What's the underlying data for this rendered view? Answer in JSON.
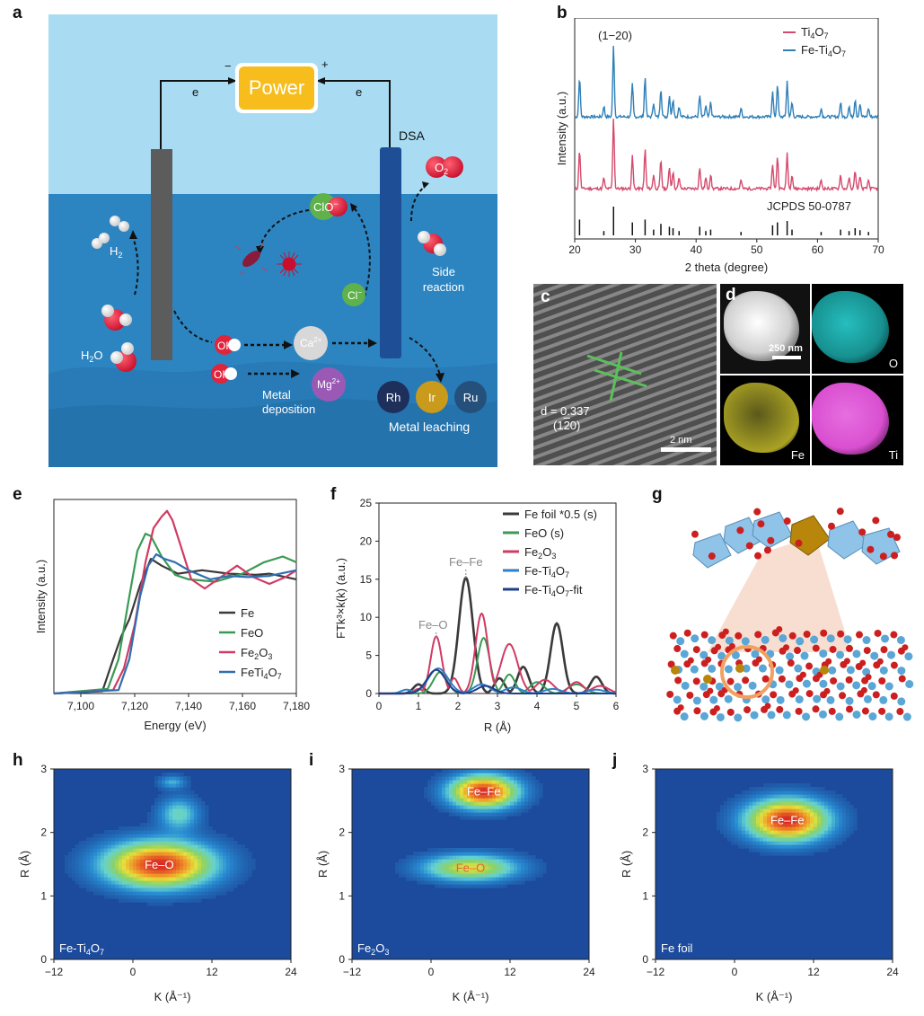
{
  "panel_labels": {
    "a": "a",
    "b": "b",
    "c": "c",
    "d": "d",
    "e": "e",
    "f": "f",
    "g": "g",
    "h": "h",
    "i": "i",
    "j": "j"
  },
  "schematic": {
    "power": "Power",
    "minus": "−",
    "plus": "+",
    "electron_left": "e",
    "electron_right": "e",
    "dsa": "DSA",
    "o2": "O",
    "o2_sub": "2",
    "clo": "ClO",
    "clo_sup": "−",
    "h2": "H",
    "h2_sub": "2",
    "cl": "Cl",
    "cl_sup": "−",
    "side_reaction_1": "Side",
    "side_reaction_2": "reaction",
    "h2o": "H",
    "h2o_sub": "2",
    "h2o_o": "O",
    "oh1": "OH",
    "oh1_sup": "−",
    "oh2": "OH",
    "oh2_sup": "−",
    "ca": "Ca",
    "ca_sup": "2+",
    "mg": "Mg",
    "mg_sup": "2+",
    "metal_deposition_1": "Metal",
    "metal_deposition_2": "deposition",
    "rh": "Rh",
    "ir": "Ir",
    "ru": "Ru",
    "metal_leaching": "Metal leaching",
    "colors": {
      "sky": "#a9dcf2",
      "water": "#2c85c1",
      "power_fill": "#f6bd1c",
      "cathode": "#5c5c5c",
      "anode": "#1e4e96"
    }
  },
  "tem": {
    "d_label": "d = 0.337",
    "d_plane": "(1",
    "d_plane_bar": "2",
    "d_plane_end": "0)",
    "scale": "2 nm"
  },
  "eds": {
    "scale": "250 nm",
    "o": "O",
    "fe": "Fe",
    "ti": "Ti",
    "colors": {
      "o": "#2ad3d3",
      "fe": "#c8bf2a",
      "ti": "#d94fd0"
    }
  },
  "chart_data": [
    {
      "id": "b",
      "type": "line",
      "title": "",
      "annotation": "(1−20)",
      "xlabel": "2 theta (degree)",
      "ylabel": "Intensity (a.u.)",
      "xlim": [
        20,
        70
      ],
      "xticks": [
        "20",
        "30",
        "40",
        "50",
        "60",
        "70"
      ],
      "reference_label": "JCPDS 50-0787",
      "legend_items": [
        {
          "name": "Ti",
          "sub": "4",
          "name2": "O",
          "sub2": "7",
          "color": "#d44a6d"
        },
        {
          "name": "Fe-Ti",
          "sub": "4",
          "name2": "O",
          "sub2": "7",
          "color": "#2f7fb8"
        }
      ],
      "peaks": [
        {
          "x": 20.8,
          "h": 0.55
        },
        {
          "x": 24.8,
          "h": 0.15
        },
        {
          "x": 26.4,
          "h": 1.0
        },
        {
          "x": 29.5,
          "h": 0.45
        },
        {
          "x": 31.6,
          "h": 0.55
        },
        {
          "x": 33.0,
          "h": 0.2
        },
        {
          "x": 34.2,
          "h": 0.4
        },
        {
          "x": 35.6,
          "h": 0.3
        },
        {
          "x": 36.2,
          "h": 0.25
        },
        {
          "x": 37.2,
          "h": 0.15
        },
        {
          "x": 40.6,
          "h": 0.3
        },
        {
          "x": 41.6,
          "h": 0.15
        },
        {
          "x": 42.4,
          "h": 0.2
        },
        {
          "x": 47.4,
          "h": 0.12
        },
        {
          "x": 52.6,
          "h": 0.35
        },
        {
          "x": 53.4,
          "h": 0.45
        },
        {
          "x": 55.0,
          "h": 0.5
        },
        {
          "x": 55.8,
          "h": 0.2
        },
        {
          "x": 60.6,
          "h": 0.12
        },
        {
          "x": 63.8,
          "h": 0.2
        },
        {
          "x": 65.2,
          "h": 0.15
        },
        {
          "x": 66.2,
          "h": 0.25
        },
        {
          "x": 67.0,
          "h": 0.18
        },
        {
          "x": 68.4,
          "h": 0.12
        }
      ]
    },
    {
      "id": "e",
      "type": "line",
      "xlabel": "Energy (eV)",
      "ylabel": "Intensity (a.u.)",
      "xlim": [
        7090,
        7180
      ],
      "ylim": [
        0,
        1.7
      ],
      "xticks": [
        "7,100",
        "7,120",
        "7,140",
        "7,160",
        "7,180"
      ],
      "series": [
        {
          "name": "Fe",
          "color": "#3a3a3a",
          "x": [
            7090,
            7108,
            7112,
            7115,
            7118,
            7122,
            7126,
            7130,
            7136,
            7145,
            7155,
            7165,
            7170,
            7180
          ],
          "y": [
            0,
            0.02,
            0.3,
            0.5,
            0.65,
            0.95,
            1.18,
            1.12,
            1.05,
            1.08,
            1.05,
            1.04,
            1.05,
            1.0
          ]
        },
        {
          "name": "FeO",
          "color": "#3a9a55",
          "x": [
            7090,
            7110,
            7114,
            7118,
            7121,
            7124,
            7126,
            7130,
            7135,
            7140,
            7150,
            7160,
            7168,
            7175,
            7180
          ],
          "y": [
            0,
            0.04,
            0.3,
            0.85,
            1.25,
            1.4,
            1.38,
            1.2,
            1.04,
            1.0,
            0.98,
            1.05,
            1.15,
            1.2,
            1.15
          ]
        },
        {
          "name": "Fe2O3",
          "color": "#d13a64",
          "x": [
            7090,
            7112,
            7116,
            7120,
            7124,
            7127,
            7130,
            7132,
            7134,
            7137,
            7141,
            7146,
            7152,
            7158,
            7164,
            7170,
            7176,
            7180
          ],
          "y": [
            0,
            0.03,
            0.22,
            0.6,
            1.15,
            1.45,
            1.55,
            1.6,
            1.52,
            1.3,
            1.0,
            0.92,
            1.02,
            1.12,
            1.02,
            0.96,
            1.02,
            1.08
          ]
        },
        {
          "name": "FeTi4O7",
          "color": "#2f6fb0",
          "x": [
            7090,
            7114,
            7118,
            7122,
            7125,
            7128,
            7131,
            7135,
            7140,
            7148,
            7155,
            7162,
            7170,
            7180
          ],
          "y": [
            0,
            0.03,
            0.3,
            0.85,
            1.12,
            1.22,
            1.18,
            1.15,
            1.08,
            1.0,
            1.03,
            1.02,
            1.03,
            1.08
          ]
        }
      ],
      "legend": [
        "Fe",
        "FeO",
        "Fe",
        "2",
        "O",
        "3",
        "FeTi",
        "4",
        "O",
        "7"
      ]
    },
    {
      "id": "f",
      "type": "line",
      "xlabel": "R (Å)",
      "ylabel": "FTk³×k(k) (a.u.)",
      "xlim": [
        0,
        6
      ],
      "ylim": [
        0,
        25
      ],
      "xticks": [
        "0",
        "1",
        "2",
        "3",
        "4",
        "5",
        "6"
      ],
      "yticks": [
        "0",
        "5",
        "10",
        "15",
        "20",
        "25"
      ],
      "annotations": [
        "Fe–Fe",
        "Fe–O"
      ],
      "series": [
        {
          "name": "Fe foil *0.5 (s)",
          "color": "#3a3a3a",
          "peaks": [
            [
              1.0,
              1.2,
              0.18
            ],
            [
              2.2,
              15.2,
              0.25
            ],
            [
              3.05,
              2.0,
              0.18
            ],
            [
              3.65,
              3.5,
              0.2
            ],
            [
              4.5,
              9.2,
              0.22
            ],
            [
              5.5,
              2.2,
              0.2
            ]
          ]
        },
        {
          "name": "FeO (s)",
          "color": "#3a9a55",
          "peaks": [
            [
              1.55,
              2.8,
              0.25
            ],
            [
              2.65,
              7.3,
              0.22
            ],
            [
              3.3,
              2.5,
              0.2
            ],
            [
              4.0,
              1.5,
              0.25
            ],
            [
              5.0,
              1.2,
              0.3
            ]
          ]
        },
        {
          "name": "Fe2O3",
          "color": "#d13a64",
          "peaks": [
            [
              1.0,
              0.6,
              0.15
            ],
            [
              1.45,
              7.5,
              0.2
            ],
            [
              1.9,
              2.0,
              0.15
            ],
            [
              2.6,
              10.5,
              0.22
            ],
            [
              3.3,
              6.5,
              0.3
            ],
            [
              4.2,
              1.8,
              0.3
            ],
            [
              5.0,
              1.5,
              0.25
            ],
            [
              5.6,
              1.0,
              0.3
            ]
          ]
        },
        {
          "name": "Fe-Ti4O7",
          "color": "#2f7fc8",
          "peaks": [
            [
              0.7,
              0.5,
              0.2
            ],
            [
              1.5,
              3.3,
              0.35
            ],
            [
              2.6,
              1.2,
              0.3
            ],
            [
              3.4,
              0.8,
              0.3
            ],
            [
              4.4,
              0.6,
              0.3
            ],
            [
              5.5,
              0.5,
              0.3
            ]
          ]
        },
        {
          "name": "Fe-Ti4O7-fit",
          "color": "#1f3f8a",
          "peaks": [
            [
              1.45,
              3.1,
              0.33
            ],
            [
              2.7,
              1.0,
              0.3
            ]
          ]
        }
      ],
      "legend_text": {
        "fe_foil": "Fe foil *0.5 (s)",
        "feo": "FeO (s)",
        "fe2o3_a": "Fe",
        "fe2o3_b": "2",
        "fe2o3_c": "O",
        "fe2o3_d": "3",
        "feti_a": "Fe-Ti",
        "feti_b": "4",
        "feti_c": "O",
        "feti_d": "7",
        "fit_a": "Fe-Ti",
        "fit_b": "4",
        "fit_c": "O",
        "fit_d": "7",
        "fit_e": "-fit"
      }
    },
    {
      "id": "h",
      "type": "heatmap",
      "xlabel": "K (Å⁻¹)",
      "ylabel": "R (Å)",
      "xlim": [
        -12,
        24
      ],
      "ylim": [
        0,
        3
      ],
      "xticks": [
        "−12",
        "0",
        "12",
        "24"
      ],
      "yticks": [
        "0",
        "1",
        "2",
        "3"
      ],
      "label": "Fe–O",
      "corner": [
        "Fe-Ti",
        "4",
        "O",
        "7"
      ],
      "blobs": [
        {
          "k": 4,
          "r": 1.5,
          "sk": 8,
          "sr": 0.35,
          "a": 1.0
        },
        {
          "k": 7,
          "r": 2.3,
          "sk": 3,
          "sr": 0.25,
          "a": 0.35
        },
        {
          "k": 6,
          "r": 2.8,
          "sk": 2,
          "sr": 0.1,
          "a": 0.25
        }
      ]
    },
    {
      "id": "i",
      "type": "heatmap",
      "xlabel": "K (Å⁻¹)",
      "ylabel": "R (Å)",
      "xlim": [
        -12,
        24
      ],
      "ylim": [
        0,
        3
      ],
      "xticks": [
        "−12",
        "0",
        "12",
        "24"
      ],
      "yticks": [
        "0",
        "1",
        "2",
        "3"
      ],
      "label": "Fe–Fe",
      "label2": "Fe–O",
      "corner": [
        "Fe",
        "2",
        "O",
        "3"
      ],
      "blobs": [
        {
          "k": 8,
          "r": 2.65,
          "sk": 5,
          "sr": 0.25,
          "a": 1.0
        },
        {
          "k": 6,
          "r": 1.45,
          "sk": 7,
          "sr": 0.2,
          "a": 0.62
        }
      ]
    },
    {
      "id": "j",
      "type": "heatmap",
      "xlabel": "K (Å⁻¹)",
      "ylabel": "R (Å)",
      "xlim": [
        -12,
        24
      ],
      "ylim": [
        0,
        3
      ],
      "xticks": [
        "−12",
        "0",
        "12",
        "24"
      ],
      "yticks": [
        "0",
        "1",
        "2",
        "3"
      ],
      "label": "Fe–Fe",
      "corner": [
        "Fe foil"
      ],
      "blobs": [
        {
          "k": 8,
          "r": 2.2,
          "sk": 6,
          "sr": 0.32,
          "a": 1.0
        }
      ]
    }
  ]
}
